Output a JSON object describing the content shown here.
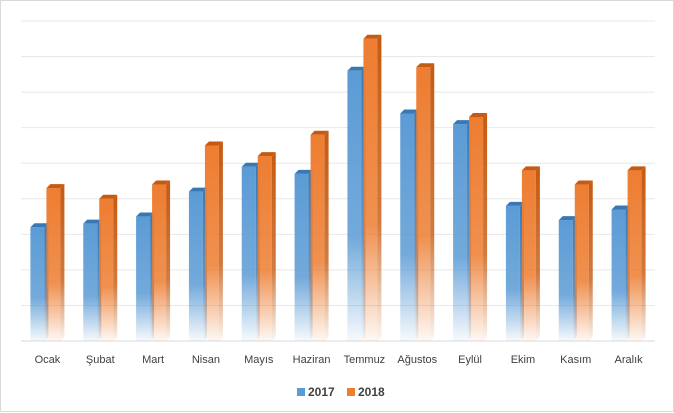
{
  "chart_data": {
    "type": "bar",
    "categories": [
      "Ocak",
      "Şubat",
      "Mart",
      "Nisan",
      "Mayıs",
      "Haziran",
      "Temmuz",
      "Ağustos",
      "Eylül",
      "Ekim",
      "Kasım",
      "Aralık"
    ],
    "series": [
      {
        "name": "2017",
        "values": [
          3.2,
          3.3,
          3.5,
          4.2,
          4.9,
          4.7,
          7.6,
          6.4,
          6.1,
          3.8,
          3.4,
          3.7
        ],
        "color": "#5B9BD5"
      },
      {
        "name": "2018",
        "values": [
          4.3,
          4.0,
          4.4,
          5.5,
          5.2,
          5.8,
          8.5,
          7.7,
          6.3,
          4.8,
          4.4,
          4.8
        ],
        "color": "#ED7D31"
      }
    ],
    "ylim": [
      0,
      9
    ],
    "grid": true,
    "legend_position": "bottom",
    "show_y_labels": false,
    "style": "3d-gradient-bars"
  }
}
